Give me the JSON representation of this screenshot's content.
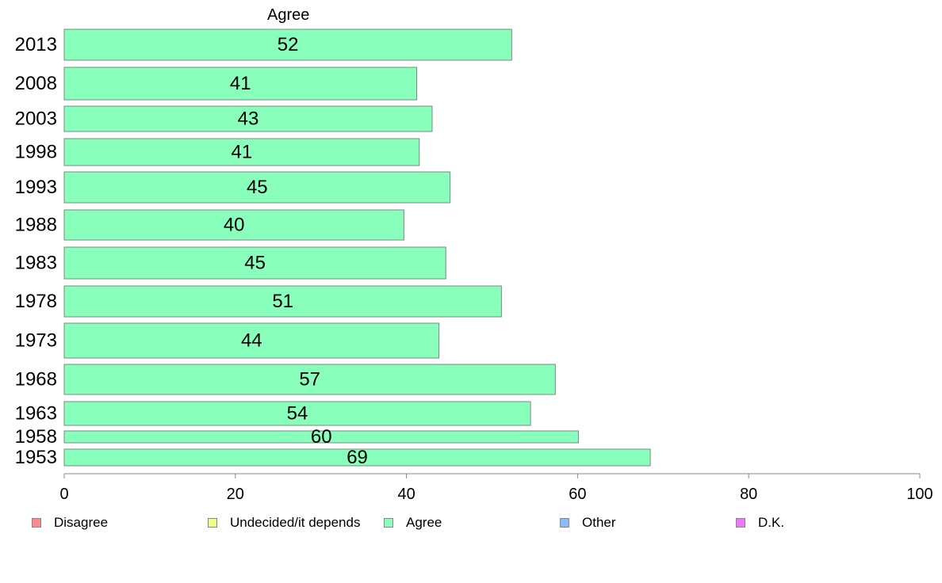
{
  "chart_data": {
    "type": "bar",
    "orientation": "horizontal",
    "title": "Agree",
    "categories": [
      "2013",
      "2008",
      "2003",
      "1998",
      "1993",
      "1988",
      "1983",
      "1978",
      "1973",
      "1968",
      "1963",
      "1958",
      "1953"
    ],
    "series": [
      {
        "name": "Agree",
        "values": [
          52.3,
          41.2,
          43.0,
          41.5,
          45.1,
          39.7,
          44.6,
          51.1,
          43.8,
          57.4,
          54.5,
          60.1,
          68.5
        ],
        "labels": [
          "52",
          "41",
          "43",
          "41",
          "45",
          "40",
          "45",
          "51",
          "44",
          "57",
          "54",
          "60",
          "69"
        ]
      }
    ],
    "xlim": [
      0,
      100
    ],
    "xticks": [
      "0",
      "20",
      "40",
      "60",
      "80",
      "100"
    ],
    "grid": false,
    "legend_position": "bottom",
    "bar_color": "#88ffbb"
  },
  "legend": [
    {
      "label": "Disagree",
      "color": "#ff8888"
    },
    {
      "label": "Undecided/it depends",
      "color": "#eeff88"
    },
    {
      "label": "Agree",
      "color": "#88ffbb"
    },
    {
      "label": "Other",
      "color": "#88bbff"
    },
    {
      "label": "D.K.",
      "color": "#ee77ff"
    }
  ]
}
